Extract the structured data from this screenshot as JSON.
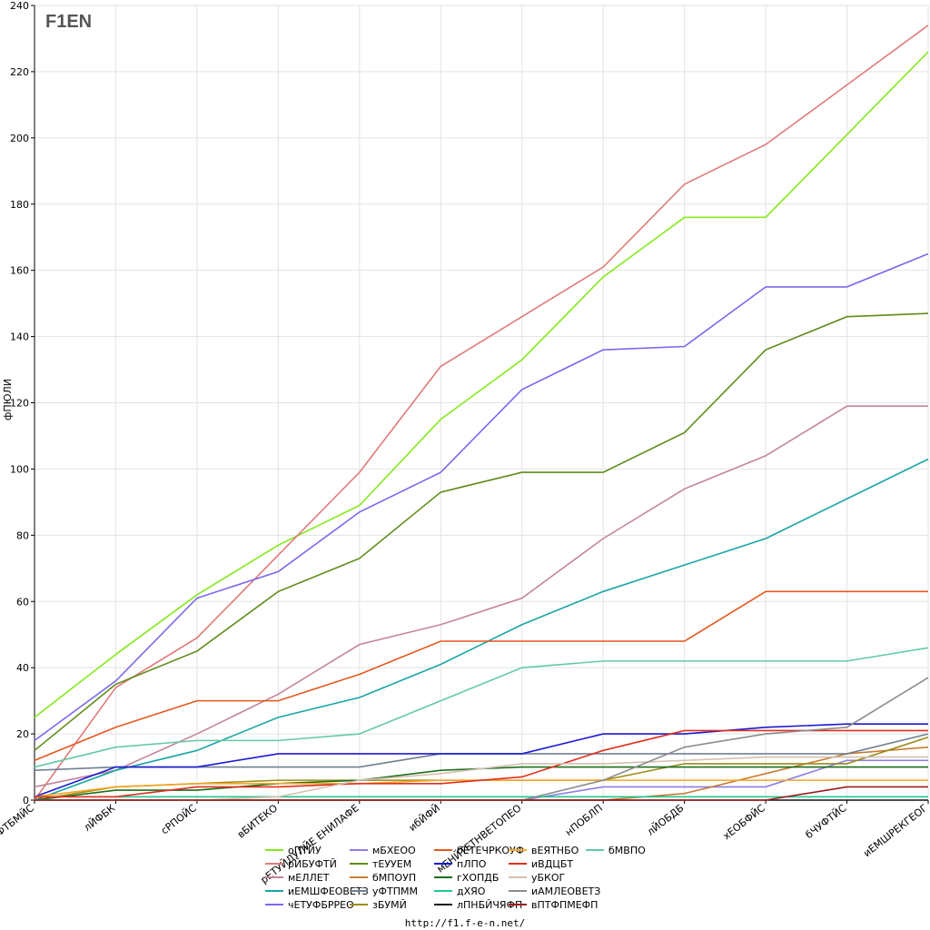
{
  "logo": {
    "text": "F1EN"
  },
  "footer": {
    "url": "http://f1.f-e-n.net/"
  },
  "chart_data": {
    "type": "line",
    "title": "",
    "xlabel": "",
    "ylabel": "фПЮЛИ",
    "ylim": [
      0,
      240
    ],
    "yticks": [
      0,
      20,
      40,
      60,
      80,
      100,
      120,
      140,
      160,
      180,
      200,
      220,
      240
    ],
    "grid": true,
    "legend_position": "bottom",
    "categories": [
      "бЧУФТБМЙС",
      "лЙФБК",
      "сРПОЙС",
      "вБИТЕКО",
      "рЕТУЙДУЛЙЕ ЕНИЛАФЕ",
      "ибЙФЙ",
      "мЕНЙТЕТНВЕТОПЕО",
      "нПОБЛП",
      "лЙОБДБ",
      "хЕОБФЙС",
      "бЧУФТЙС",
      "иЕМШРЕКГЕОГ"
    ],
    "series": [
      {
        "name": "оПТЙУ",
        "color": "#84e81d",
        "values": [
          25,
          44,
          62,
          77,
          89,
          115,
          133,
          158,
          176,
          176,
          201,
          226
        ]
      },
      {
        "name": "рЙБУФТЙ",
        "color": "#e07a7a",
        "values": [
          0,
          34,
          49,
          74,
          99,
          131,
          146,
          161,
          186,
          198,
          216,
          234
        ]
      },
      {
        "name": "мЕЛЛЕТ",
        "color": "#c4849a",
        "values": [
          4,
          9,
          20,
          32,
          47,
          53,
          61,
          79,
          94,
          104,
          119,
          119
        ]
      },
      {
        "name": "иЕМШФЕОВЕТЗ",
        "color": "#1aa5a5",
        "values": [
          0,
          9,
          15,
          25,
          31,
          41,
          53,
          63,
          71,
          79,
          91,
          103
        ]
      },
      {
        "name": "чЕТУФБРРЕО",
        "color": "#7b68ee",
        "values": [
          18,
          36,
          61,
          69,
          87,
          99,
          124,
          136,
          137,
          155,
          155,
          165
        ]
      },
      {
        "name": "мБХЕОО",
        "color": "#8a7de8",
        "values": [
          0,
          0,
          0,
          0,
          0,
          0,
          0,
          4,
          4,
          4,
          12,
          12
        ]
      },
      {
        "name": "тЕУУЕМ",
        "color": "#5f8c1a",
        "values": [
          15,
          35,
          45,
          63,
          73,
          93,
          99,
          99,
          111,
          136,
          146,
          147
        ]
      },
      {
        "name": "бМПОУП",
        "color": "#c87b36",
        "values": [
          0,
          0,
          0,
          0,
          0,
          0,
          0,
          0,
          2,
          8,
          14,
          16
        ]
      },
      {
        "name": "уФТПММ",
        "color": "#708090",
        "values": [
          9,
          10,
          10,
          10,
          10,
          14,
          14,
          14,
          14,
          14,
          14,
          20
        ]
      },
      {
        "name": "зБУМЙ",
        "color": "#9c8a17",
        "values": [
          0,
          4,
          5,
          6,
          6,
          6,
          6,
          6,
          11,
          11,
          11,
          19
        ]
      },
      {
        "name": "бЕТЕЧРКОУФ",
        "color": "#e4571c",
        "values": [
          12,
          22,
          30,
          30,
          38,
          48,
          48,
          48,
          48,
          63,
          63,
          63
        ]
      },
      {
        "name": "пЛПО",
        "color": "#1a1ad6",
        "values": [
          1,
          10,
          10,
          14,
          14,
          14,
          14,
          20,
          20,
          22,
          23,
          23
        ]
      },
      {
        "name": "гХОПДБ",
        "color": "#1a6e1a",
        "values": [
          0,
          3,
          3,
          5,
          6,
          9,
          10,
          10,
          10,
          10,
          10,
          10
        ]
      },
      {
        "name": "дХЯО",
        "color": "#1fc98f",
        "values": [
          1,
          1,
          1,
          1,
          1,
          1,
          1,
          1,
          1,
          1,
          1,
          1
        ]
      },
      {
        "name": "лПНБЙЧЯФП",
        "color": "#111111",
        "values": [
          0,
          0,
          0,
          0,
          0,
          0,
          0,
          0,
          0,
          0,
          0,
          0
        ]
      },
      {
        "name": "вЕЯТНБО",
        "color": "#f5a623",
        "values": [
          1,
          4,
          5,
          5,
          5,
          6,
          6,
          6,
          6,
          6,
          6,
          6
        ]
      },
      {
        "name": "иВДЦБТ",
        "color": "#e0301f",
        "values": [
          1,
          1,
          4,
          4,
          5,
          5,
          7,
          15,
          21,
          21,
          21,
          21
        ]
      },
      {
        "name": "уБКОГ",
        "color": "#d4c0b0",
        "values": [
          0,
          0,
          0,
          1,
          6,
          8,
          11,
          11,
          12,
          13,
          13,
          13
        ]
      },
      {
        "name": "иАМЛЕОВЕТЗ",
        "color": "#8c8c8c",
        "values": [
          0,
          0,
          0,
          0,
          0,
          0,
          0,
          6,
          16,
          20,
          22,
          37
        ]
      },
      {
        "name": "вПТФПМЕФП",
        "color": "#9e1a1a",
        "values": [
          0,
          0,
          0,
          0,
          0,
          0,
          0,
          0,
          0,
          0,
          4,
          4
        ]
      },
      {
        "name": "бМВПО",
        "color": "#63c9a8",
        "values": [
          10,
          16,
          18,
          18,
          20,
          30,
          40,
          42,
          42,
          42,
          42,
          46
        ]
      }
    ]
  }
}
